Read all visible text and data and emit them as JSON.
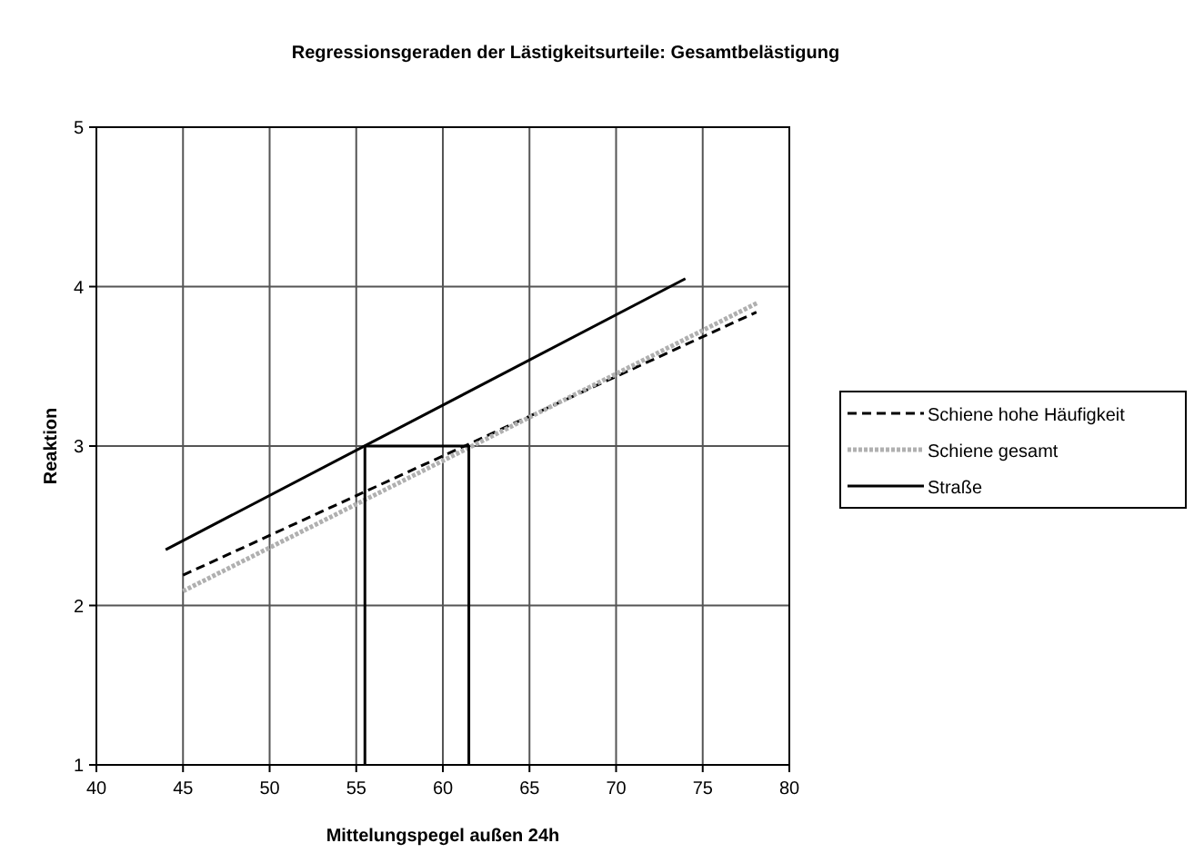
{
  "chart_data": {
    "type": "line",
    "title": "Regressionsgeraden der Lästigkeitsurteile: Gesamtbelästigung",
    "xlabel": "Mittelungspegel außen 24h",
    "ylabel": "Reaktion",
    "xlim": [
      40,
      80
    ],
    "xticks": [
      40,
      45,
      50,
      55,
      60,
      65,
      70,
      75,
      80
    ],
    "ylim": [
      1,
      5
    ],
    "yticks": [
      1,
      2,
      3,
      4,
      5
    ],
    "grid": true,
    "legend": "right",
    "marker": "none",
    "series": [
      {
        "name": "Schiene hohe Häufigkeit",
        "color": "#000000",
        "line_style": "dashed",
        "x": [
          45,
          78.1
        ],
        "values": [
          2.19,
          3.84
        ]
      },
      {
        "name": "Schiene gesamt",
        "color": "#b0b0b0",
        "line_style": "dotted",
        "x": [
          45,
          78.2
        ],
        "values": [
          2.09,
          3.9
        ]
      },
      {
        "name": "Straße",
        "color": "#000000",
        "line_style": "solid",
        "x": [
          44,
          74
        ],
        "values": [
          2.35,
          4.05
        ]
      },
      {
        "color": "#000000",
        "line_style": "solid",
        "x": [
          55.5,
          55.5,
          61.5,
          61.5
        ],
        "values": [
          1,
          3,
          3,
          1
        ]
      }
    ]
  }
}
